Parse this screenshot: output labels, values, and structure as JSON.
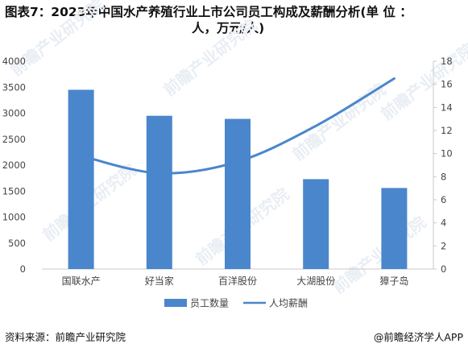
{
  "title_line1": "图表7：2023年中国水产养殖行业上市公司员工构成及薪酬分析(单 位 ：",
  "title_line2": "人，万元/人)",
  "source": "资料来源：前瞻产业研究院",
  "brand": "@前瞻经济学人APP",
  "watermark": "前瞻产业研究院",
  "colors": {
    "bar": "#4a86cc",
    "line": "#4a86cc",
    "axis": "#c8c8c8",
    "text": "#444444"
  },
  "chart_data": {
    "type": "bar",
    "categories": [
      "国联水产",
      "好当家",
      "百洋股份",
      "大湖股份",
      "獐子岛"
    ],
    "series": [
      {
        "name": "员工数量",
        "type": "bar",
        "axis": "left",
        "values": [
          3450,
          2950,
          2890,
          1730,
          1560
        ]
      },
      {
        "name": "人均薪酬",
        "type": "line",
        "axis": "right",
        "values": [
          9.8,
          8.3,
          9.3,
          12.4,
          16.5
        ]
      }
    ],
    "y_left": {
      "min": 0,
      "max": 4000,
      "ticks": [
        0,
        500,
        1000,
        1500,
        2000,
        2500,
        3000,
        3500,
        4000
      ]
    },
    "y_right": {
      "min": 0,
      "max": 18,
      "ticks": [
        0,
        2,
        4,
        6,
        8,
        10,
        12,
        14,
        16,
        18
      ]
    },
    "grid": false,
    "legend_position": "bottom"
  }
}
